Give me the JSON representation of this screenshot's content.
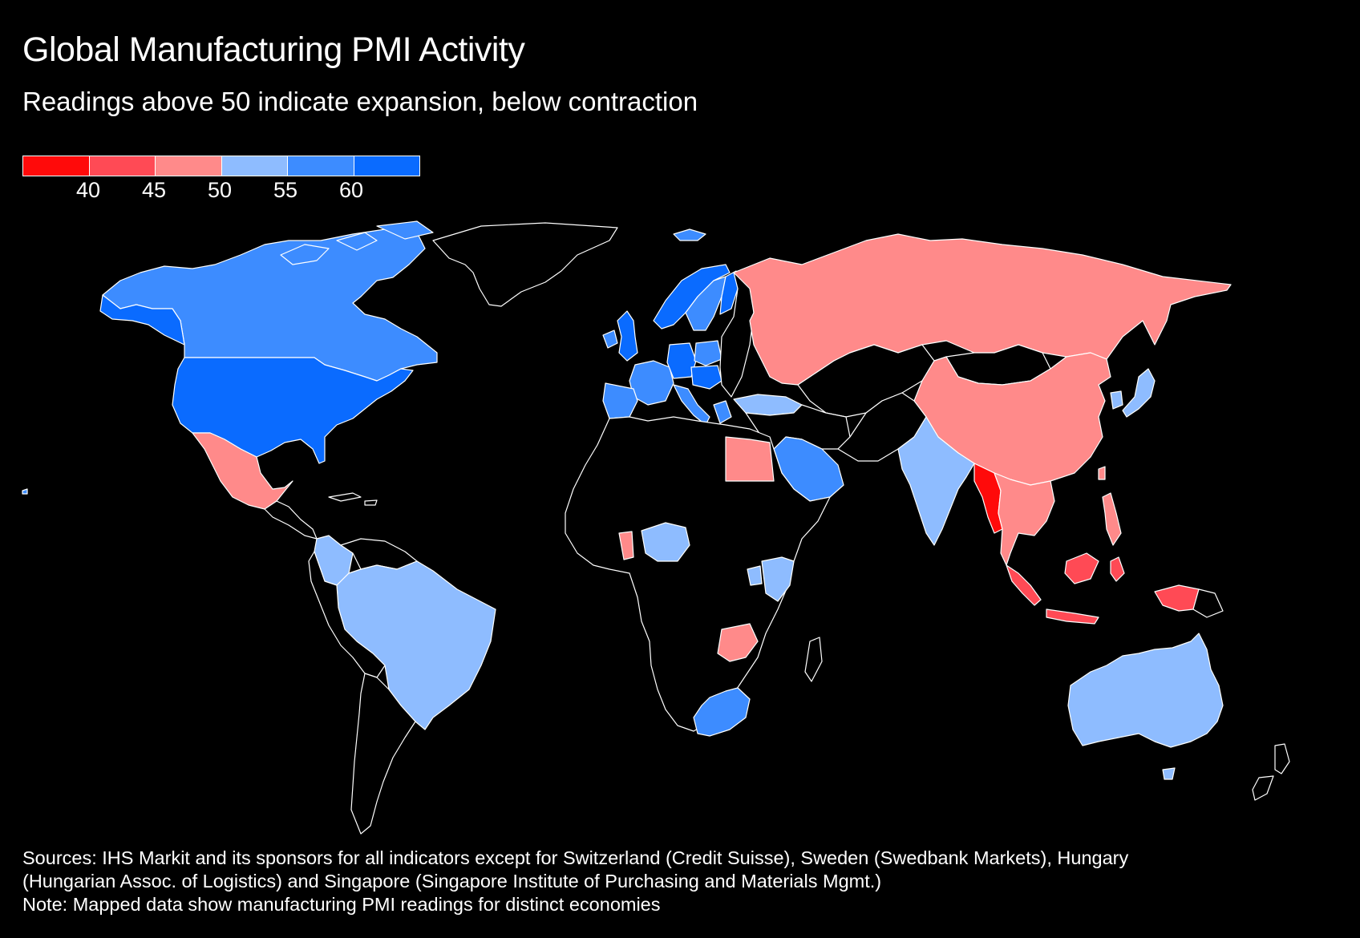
{
  "header": {
    "title": "Global Manufacturing PMI Activity",
    "subtitle": "Readings above 50 indicate expansion, below contraction"
  },
  "legend": {
    "bins": [
      {
        "range": "< 40",
        "color": "#ff0a0a"
      },
      {
        "range": "40-45",
        "color": "#ff4a55"
      },
      {
        "range": "45-50",
        "color": "#ff8a8a"
      },
      {
        "range": "50-55",
        "color": "#8ebcff"
      },
      {
        "range": "55-60",
        "color": "#3d8cff"
      },
      {
        "range": "> 60",
        "color": "#0a6bff"
      }
    ],
    "ticks": [
      "40",
      "45",
      "50",
      "55",
      "60"
    ]
  },
  "colors": {
    "background": "#000000",
    "no_data": "#000000",
    "border": "#ffffff"
  },
  "footer": {
    "sources_line1": "Sources: IHS Markit and its sponsors for all indicators except for Switzerland (Credit Suisse), Sweden (Swedbank Markets), Hungary",
    "sources_line2": "(Hungarian Assoc. of Logistics) and Singapore (Singapore Institute of Purchasing and Materials Mgmt.)",
    "note": "Note: Mapped data show manufacturing PMI readings for distinct economies"
  }
}
